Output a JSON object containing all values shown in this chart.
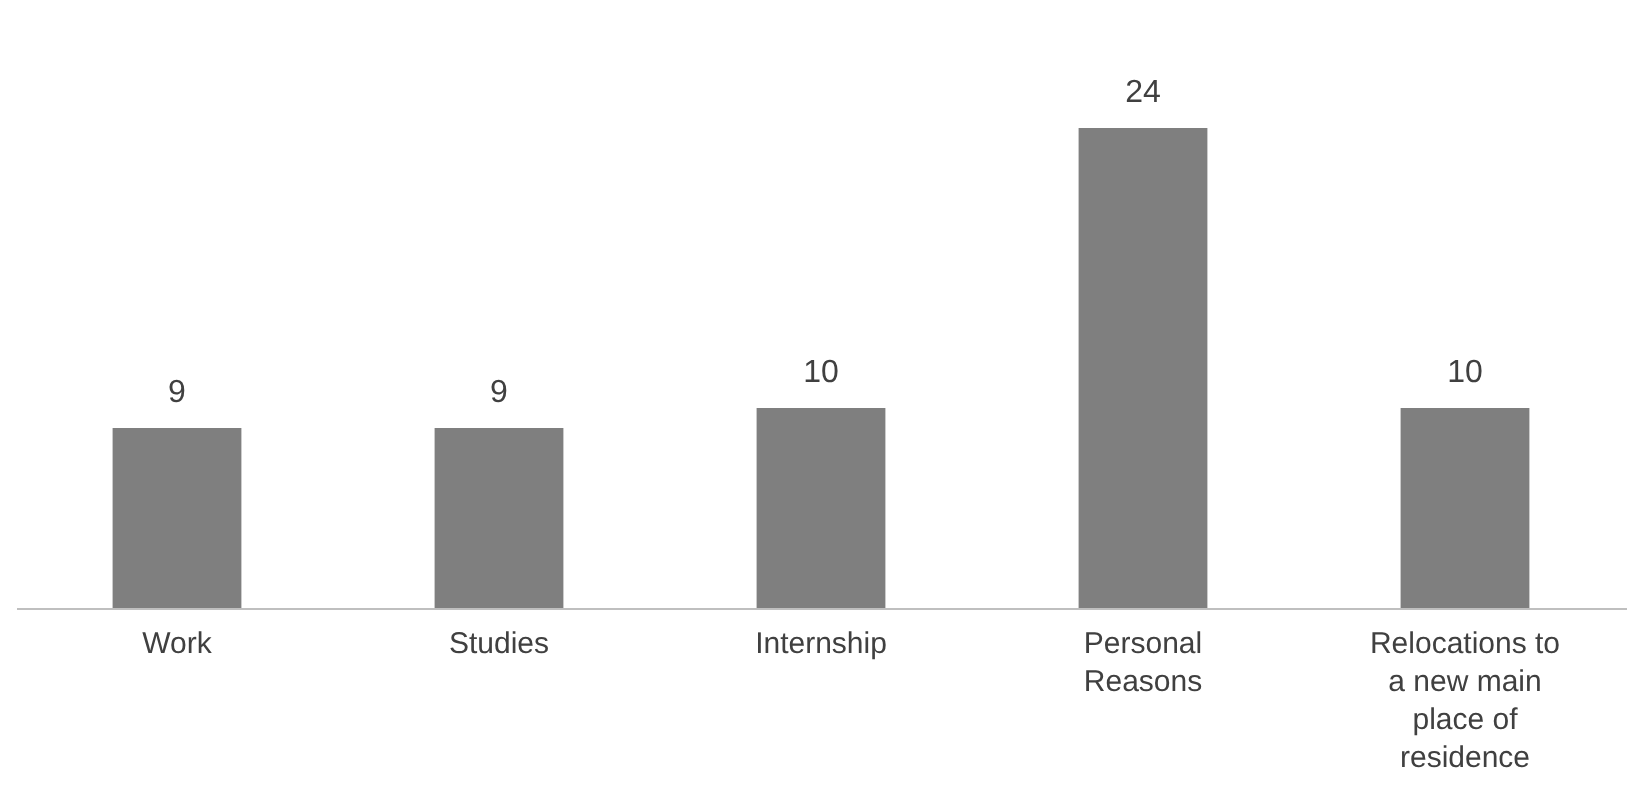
{
  "chart_data": {
    "type": "bar",
    "categories": [
      "Work",
      "Studies",
      "Internship",
      "Personal Reasons",
      "Relocations to a new main place of residence"
    ],
    "values": [
      9,
      9,
      10,
      24,
      10
    ],
    "color": "#7f7f7f",
    "data_labels": true
  }
}
